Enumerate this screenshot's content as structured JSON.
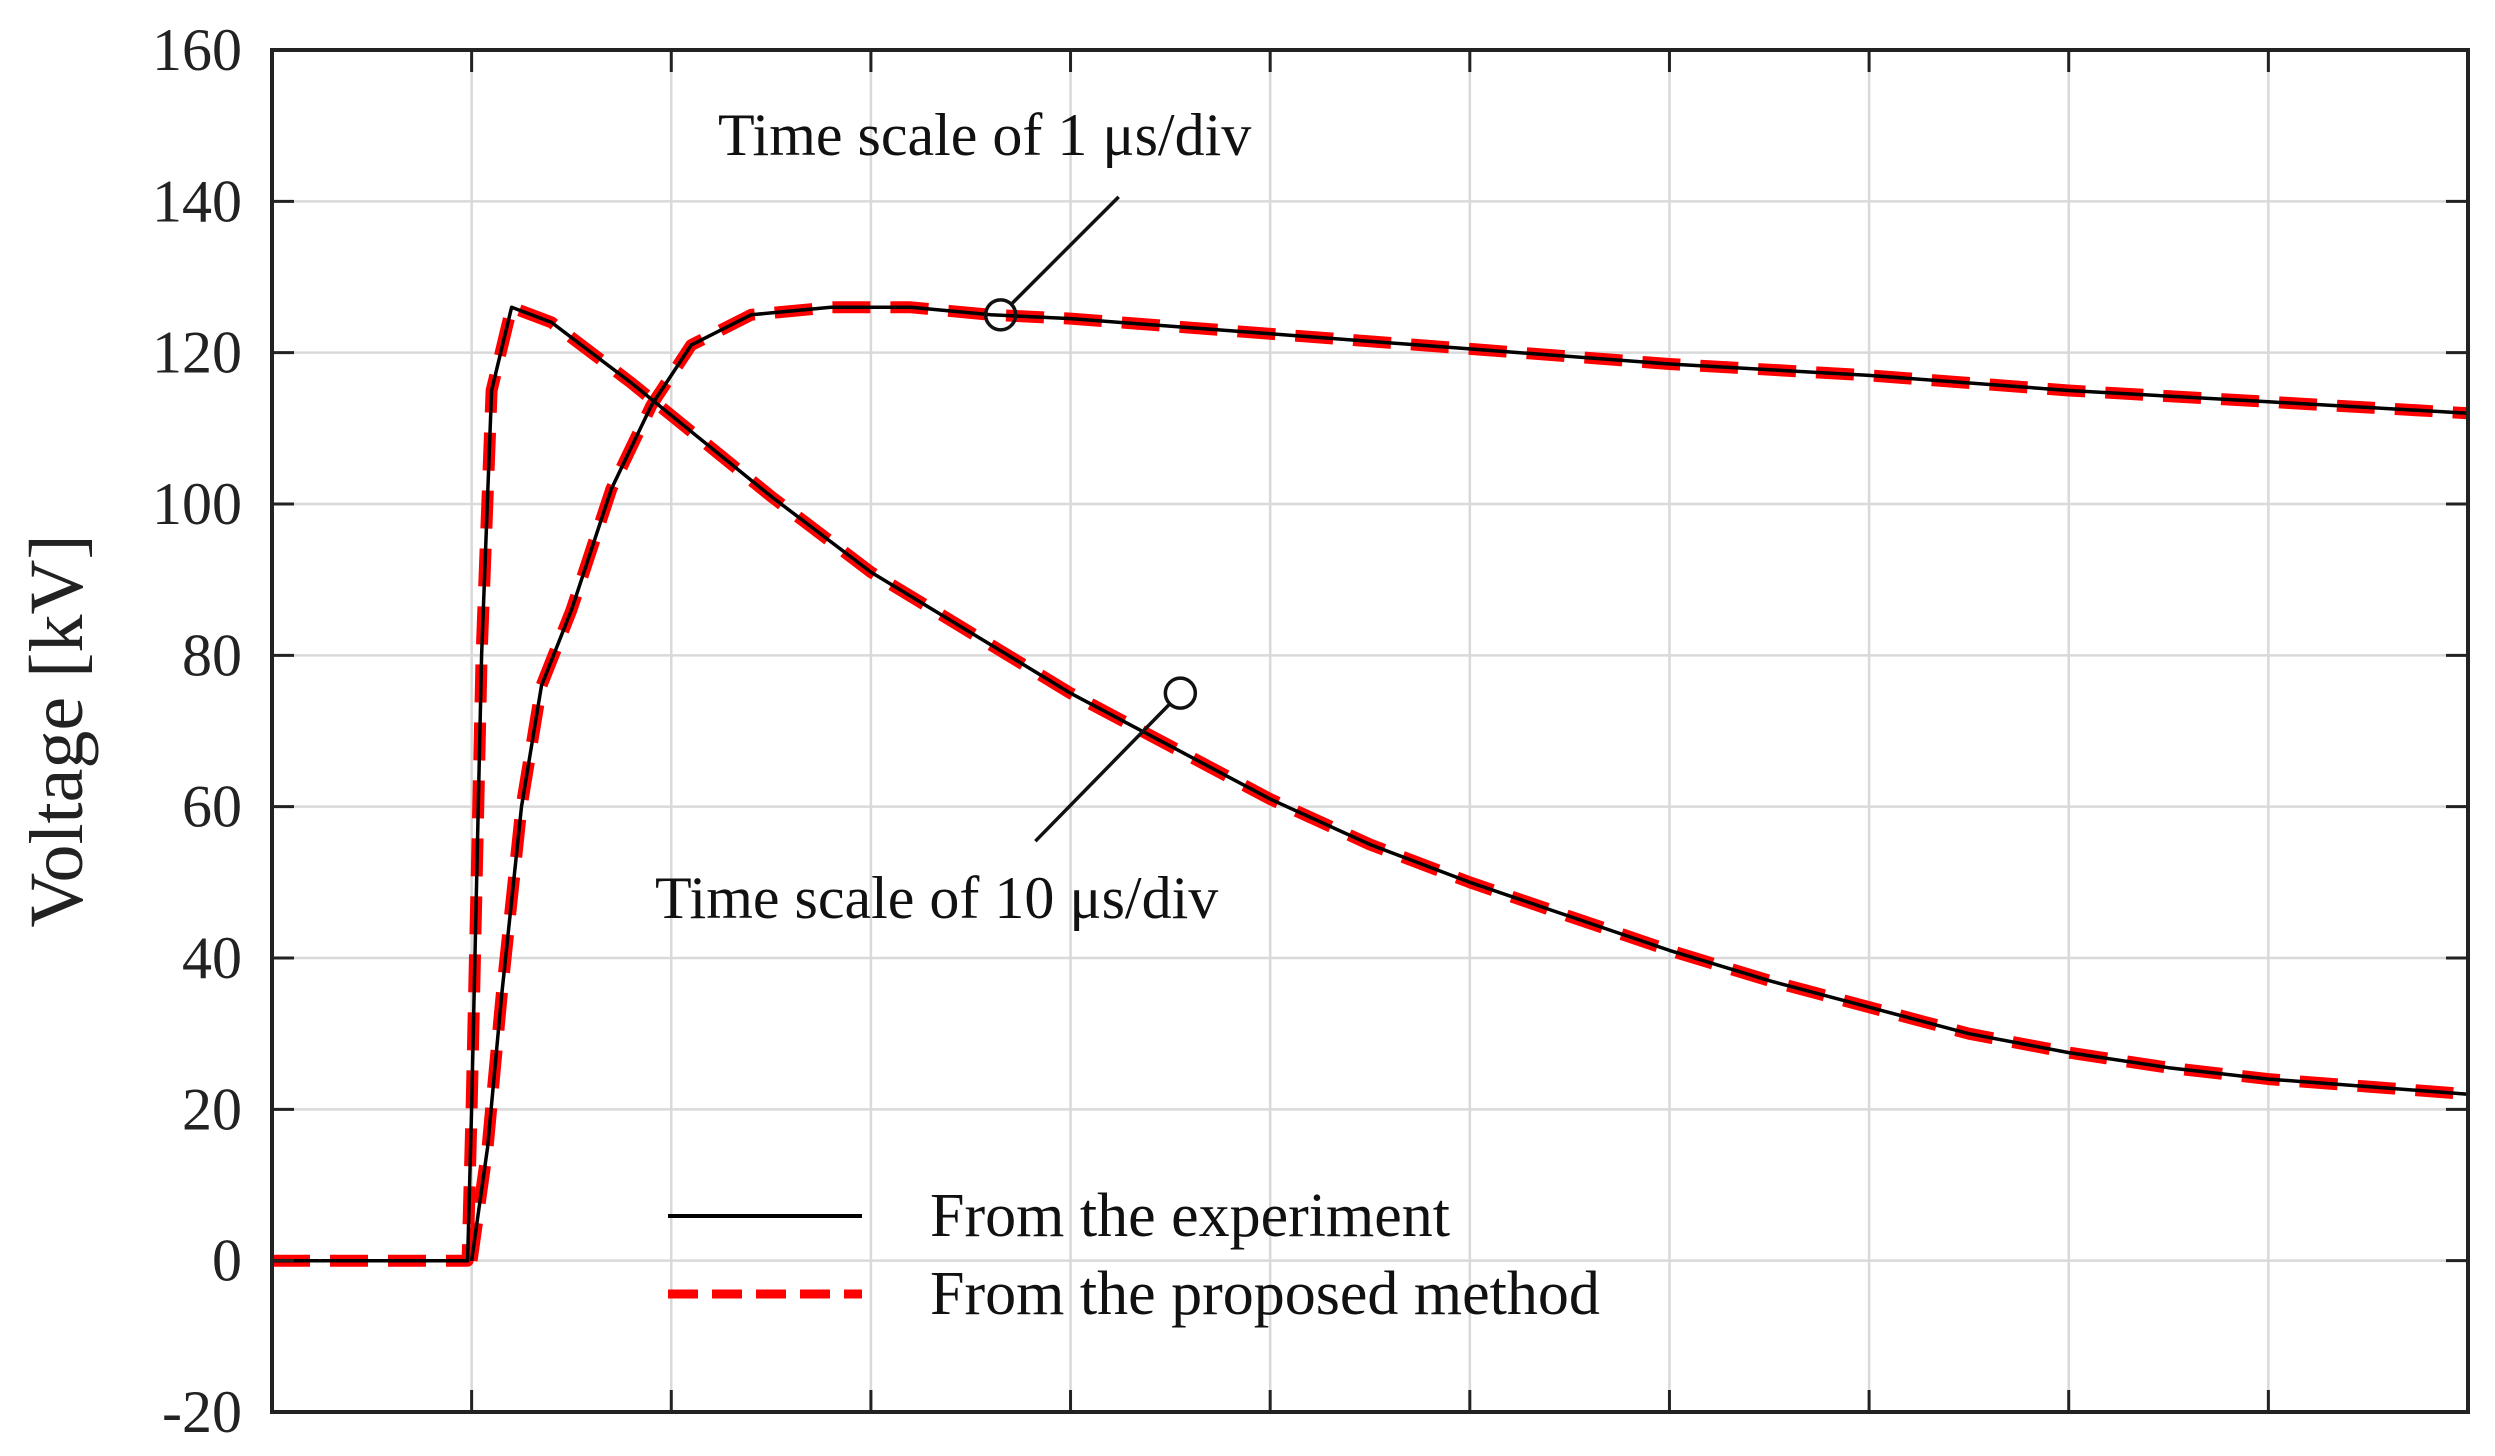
{
  "chart_data": {
    "type": "line",
    "title": "",
    "xlabel": "",
    "ylabel": "Voltage [kV]",
    "ylim": [
      -20,
      160
    ],
    "yticks": [
      -20,
      0,
      20,
      40,
      60,
      80,
      100,
      120,
      140,
      160
    ],
    "xlim": [
      0,
      11
    ],
    "x_divisions": 11,
    "x_tick_labels_shown": false,
    "grid": true,
    "legend_position": "bottom-center",
    "colors": {
      "experiment": "#000000",
      "proposed": "#ff0000",
      "axis": "#222222",
      "grid": "#d9d9d9"
    },
    "series": [
      {
        "name": "From the experiment",
        "group": "10us",
        "style": "solid",
        "x": [
          0,
          0.98,
          1.0,
          1.05,
          1.1,
          1.2,
          1.4,
          1.8,
          2.5,
          3.0,
          3.5,
          4.0,
          4.5,
          5.0,
          5.5,
          6.0,
          6.5,
          7.0,
          7.5,
          8.0,
          8.5,
          9.0,
          9.5,
          10.0,
          10.5,
          11.0
        ],
        "y": [
          0,
          0,
          20,
          80,
          115,
          126,
          124,
          116,
          101,
          91,
          83,
          75,
          68,
          61,
          55,
          50,
          45.5,
          41,
          37,
          33.5,
          30,
          27.5,
          25.5,
          24,
          23,
          22
        ]
      },
      {
        "name": "From the proposed method",
        "group": "10us",
        "style": "dashed",
        "x": [
          0,
          0.98,
          1.0,
          1.05,
          1.1,
          1.2,
          1.4,
          1.8,
          2.5,
          3.0,
          3.5,
          4.0,
          4.5,
          5.0,
          5.5,
          6.0,
          6.5,
          7.0,
          7.5,
          8.0,
          8.5,
          9.0,
          9.5,
          10.0,
          10.5,
          11.0
        ],
        "y": [
          0,
          0,
          20,
          80,
          115,
          126,
          124,
          116,
          101,
          91,
          83,
          75,
          68,
          61,
          55,
          50,
          45.5,
          41,
          37,
          33.5,
          30,
          27.5,
          25.5,
          24,
          23,
          22
        ]
      },
      {
        "name": "From the experiment",
        "group": "1us",
        "style": "solid",
        "x": [
          1.0,
          1.08,
          1.15,
          1.25,
          1.35,
          1.5,
          1.7,
          1.9,
          2.1,
          2.4,
          2.8,
          3.2,
          3.6,
          4.0,
          5.0,
          6.0,
          7.0,
          8.0,
          9.0,
          10.0,
          11.0
        ],
        "y": [
          0,
          15,
          35,
          60,
          76,
          86,
          102,
          113,
          121,
          125,
          126,
          126,
          125,
          124.5,
          122.5,
          120.5,
          118.5,
          117,
          115,
          113.5,
          112
        ]
      },
      {
        "name": "From the proposed method",
        "group": "1us",
        "style": "dashed",
        "x": [
          1.0,
          1.08,
          1.15,
          1.25,
          1.35,
          1.5,
          1.7,
          1.9,
          2.1,
          2.4,
          2.8,
          3.2,
          3.6,
          4.0,
          5.0,
          6.0,
          7.0,
          8.0,
          9.0,
          10.0,
          11.0
        ],
        "y": [
          0,
          15,
          35,
          60,
          76,
          86,
          102,
          113,
          121,
          125,
          126,
          126,
          125,
          124.5,
          122.5,
          120.5,
          118.5,
          117,
          115,
          113.5,
          112
        ]
      }
    ],
    "annotations": [
      {
        "text": "Time scale of 1 μs/div",
        "point_x": 3.65,
        "point_y": 125,
        "target": "1us"
      },
      {
        "text": "Time scale of 10 μs/div",
        "point_x": 4.55,
        "point_y": 75,
        "target": "10us"
      }
    ],
    "legend": [
      {
        "label": "From the experiment",
        "style": "solid"
      },
      {
        "label": "From the proposed method",
        "style": "dashed"
      }
    ]
  }
}
